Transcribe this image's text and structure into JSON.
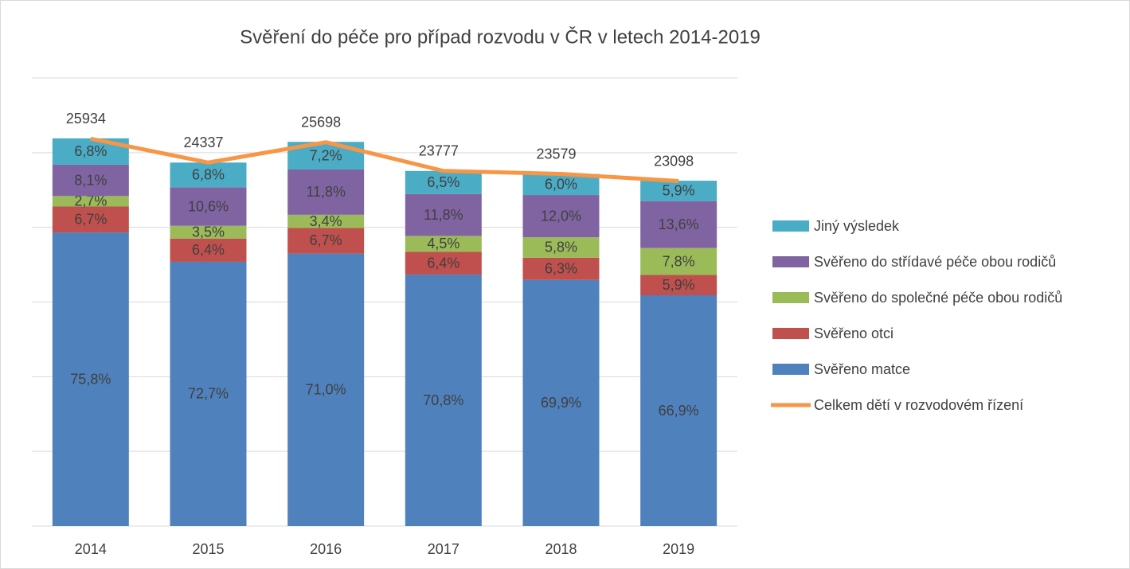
{
  "chart_data": {
    "type": "stacked-bar-line",
    "title": "Svěření do péče pro případ rozvodu v ČR v letech 2014-2019",
    "categories": [
      "2014",
      "2015",
      "2016",
      "2017",
      "2018",
      "2019"
    ],
    "ylim": [
      0,
      30000
    ],
    "yticks": [
      0,
      5000,
      10000,
      15000,
      20000,
      25000,
      30000
    ],
    "grid": true,
    "series": [
      {
        "name": "Svěřeno matce",
        "color": "#4f81bd",
        "values": [
          75.8,
          72.7,
          71.0,
          70.8,
          69.9,
          66.9
        ],
        "value_labels": [
          "75,8%",
          "72,7%",
          "71,0%",
          "70,8%",
          "69,9%",
          "66,9%"
        ]
      },
      {
        "name": "Svěřeno otci",
        "color": "#c0504d",
        "values": [
          6.7,
          6.4,
          6.7,
          6.4,
          6.3,
          5.9
        ],
        "value_labels": [
          "6,7%",
          "6,4%",
          "6,7%",
          "6,4%",
          "6,3%",
          "5,9%"
        ]
      },
      {
        "name": "Svěřeno do společné péče obou rodičů",
        "color": "#9bbb59",
        "values": [
          2.7,
          3.5,
          3.4,
          4.5,
          5.8,
          7.8
        ],
        "value_labels": [
          "2,7%",
          "3,5%",
          "3,4%",
          "4,5%",
          "5,8%",
          "7,8%"
        ]
      },
      {
        "name": "Svěřeno do střídavé péče obou rodičů",
        "color": "#8064a2",
        "values": [
          8.1,
          10.6,
          11.8,
          11.8,
          12.0,
          13.6
        ],
        "value_labels": [
          "8,1%",
          "10,6%",
          "11,8%",
          "11,8%",
          "12,0%",
          "13,6%"
        ]
      },
      {
        "name": "Jiný výsledek",
        "color": "#4bacc6",
        "values": [
          6.8,
          6.8,
          7.2,
          6.5,
          6.0,
          5.9
        ],
        "value_labels": [
          "6,8%",
          "6,8%",
          "7,2%",
          "6,5%",
          "6,0%",
          "5,9%"
        ]
      },
      {
        "name": "Celkem dětí v rozvodovém řízení",
        "color": "#f79646",
        "type": "line",
        "values": [
          25934,
          24337,
          25698,
          23777,
          23579,
          23098
        ]
      }
    ]
  }
}
